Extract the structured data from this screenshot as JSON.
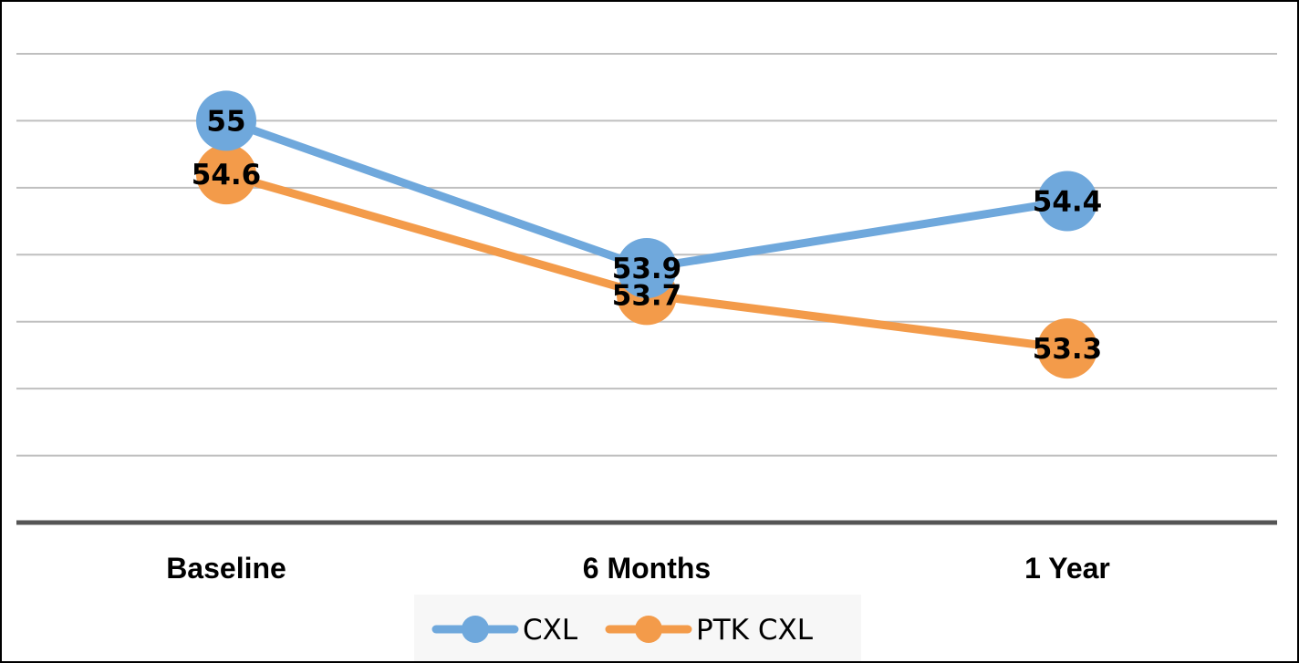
{
  "chart_data": {
    "type": "line",
    "categories": [
      "Baseline",
      "6 Months",
      "1 Year"
    ],
    "series": [
      {
        "name": "CXL",
        "values": [
          55,
          53.9,
          54.4
        ],
        "color": "#6FA8DC",
        "labels": [
          "55",
          "53.9",
          "54.4"
        ]
      },
      {
        "name": "PTK CXL",
        "values": [
          54.6,
          53.7,
          53.3
        ],
        "color": "#F39B4A",
        "labels": [
          "54.6",
          "53.7",
          "53.3"
        ]
      }
    ],
    "ylim": [
      52,
      55.5
    ],
    "grid": true,
    "legend": "bottom",
    "title": "",
    "xlabel": "",
    "ylabel": ""
  }
}
